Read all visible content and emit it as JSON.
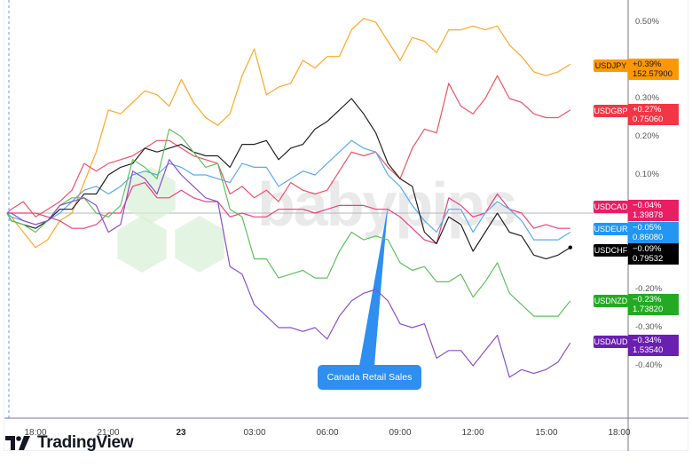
{
  "chart_data": {
    "type": "line",
    "title": "",
    "xlabel": "",
    "ylabel": "",
    "x_tick_labels": [
      "18:00",
      "21:00",
      "23",
      "03:00",
      "06:00",
      "09:00",
      "12:00",
      "15:00",
      "18:00"
    ],
    "y_tick_labels": [
      "0.50%",
      "0.30%",
      "0.20%",
      "0.10%",
      "-0.20%",
      "-0.30%",
      "-0.40%"
    ],
    "ylim": [
      -0.55,
      0.56
    ],
    "grid": false,
    "legend": "right (price-scale labels)",
    "x": [
      "17:00",
      "17:30",
      "18:00",
      "18:30",
      "19:00",
      "19:30",
      "20:00",
      "20:30",
      "21:00",
      "21:30",
      "22:00",
      "22:30",
      "23:00",
      "23:30",
      "00:00",
      "00:30",
      "01:00",
      "01:30",
      "02:00",
      "02:30",
      "03:00",
      "03:30",
      "04:00",
      "04:30",
      "05:00",
      "05:30",
      "06:00",
      "06:30",
      "07:00",
      "07:30",
      "08:00",
      "08:30",
      "09:00",
      "09:30",
      "10:00",
      "10:30",
      "11:00",
      "11:30",
      "12:00",
      "12:30",
      "13:00",
      "13:30",
      "14:00",
      "14:30",
      "15:00",
      "15:30",
      "16:00"
    ],
    "series": [
      {
        "name": "USDJPY",
        "change": "+0.39%",
        "price": "152.57900",
        "color": "#ff9800",
        "line_color": "#ffa726",
        "values": [
          -0.01,
          -0.05,
          -0.09,
          -0.07,
          -0.02,
          0.0,
          0.08,
          0.16,
          0.27,
          0.26,
          0.29,
          0.32,
          0.31,
          0.28,
          0.35,
          0.29,
          0.25,
          0.23,
          0.26,
          0.36,
          0.43,
          0.31,
          0.33,
          0.34,
          0.4,
          0.38,
          0.41,
          0.41,
          0.48,
          0.51,
          0.5,
          0.45,
          0.4,
          0.46,
          0.45,
          0.42,
          0.48,
          0.48,
          0.49,
          0.48,
          0.49,
          0.44,
          0.41,
          0.37,
          0.36,
          0.37,
          0.39
        ]
      },
      {
        "name": "USDGBP",
        "change": "+0.27%",
        "price": "0.75060",
        "color": "#f23645",
        "line_color": "#f05265",
        "values": [
          0.01,
          0.03,
          -0.01,
          0.01,
          0.03,
          0.06,
          0.13,
          0.11,
          0.13,
          0.14,
          0.15,
          0.17,
          0.19,
          0.19,
          0.17,
          0.15,
          0.14,
          0.13,
          0.05,
          0.07,
          0.04,
          0.06,
          0.03,
          0.08,
          0.06,
          0.05,
          0.06,
          0.11,
          0.16,
          0.15,
          0.16,
          0.12,
          0.09,
          0.17,
          0.22,
          0.21,
          0.34,
          0.28,
          0.26,
          0.3,
          0.36,
          0.3,
          0.29,
          0.26,
          0.25,
          0.25,
          0.27
        ]
      },
      {
        "name": "USDCAD",
        "change": "−0.04%",
        "price": "1.39878",
        "color": "#e91e63",
        "line_color": "#ec407a",
        "values": [
          0.0,
          0.0,
          0.0,
          -0.01,
          -0.02,
          -0.04,
          -0.04,
          -0.03,
          0.0,
          0.0,
          0.07,
          0.08,
          0.04,
          0.04,
          0.06,
          0.04,
          0.03,
          0.03,
          -0.01,
          0.0,
          -0.01,
          -0.01,
          0.01,
          0.01,
          0.01,
          0.0,
          0.01,
          0.02,
          0.02,
          0.02,
          0.01,
          0.01,
          -0.01,
          -0.04,
          -0.07,
          -0.08,
          0.04,
          0.02,
          -0.01,
          0.0,
          0.05,
          0.01,
          0.0,
          -0.04,
          -0.03,
          -0.04,
          -0.04
        ]
      },
      {
        "name": "USDEUR",
        "change": "−0.05%",
        "price": "0.86080",
        "color": "#2196f3",
        "line_color": "#5aa8f5",
        "values": [
          -0.01,
          -0.02,
          -0.03,
          -0.02,
          0.0,
          0.03,
          0.06,
          0.07,
          0.05,
          0.07,
          0.1,
          0.11,
          0.1,
          0.13,
          0.12,
          0.1,
          0.1,
          0.09,
          0.08,
          0.13,
          0.12,
          0.12,
          0.07,
          0.09,
          0.11,
          0.1,
          0.13,
          0.16,
          0.19,
          0.17,
          0.16,
          0.1,
          0.07,
          0.02,
          -0.02,
          -0.05,
          0.01,
          0.01,
          -0.05,
          0.0,
          0.03,
          0.01,
          -0.02,
          -0.07,
          -0.07,
          -0.07,
          -0.05
        ]
      },
      {
        "name": "USDCHF",
        "change": "−0.09%",
        "price": "0.79532",
        "color": "#000000",
        "line_color": "#222222",
        "values": [
          -0.02,
          -0.03,
          -0.04,
          -0.02,
          0.01,
          0.01,
          0.05,
          0.05,
          0.1,
          0.12,
          0.13,
          0.17,
          0.16,
          0.17,
          0.18,
          0.16,
          0.15,
          0.15,
          0.12,
          0.18,
          0.18,
          0.19,
          0.14,
          0.17,
          0.18,
          0.22,
          0.24,
          0.27,
          0.3,
          0.26,
          0.21,
          0.13,
          0.09,
          0.07,
          -0.05,
          -0.08,
          -0.01,
          -0.03,
          -0.1,
          -0.05,
          0.0,
          -0.05,
          -0.06,
          -0.11,
          -0.12,
          -0.11,
          -0.09
        ]
      },
      {
        "name": "USDNZD",
        "change": "−0.23%",
        "price": "1.73820",
        "color": "#22ab22",
        "line_color": "#5cc35c",
        "values": [
          -0.02,
          -0.03,
          -0.05,
          -0.02,
          0.02,
          0.04,
          0.04,
          0.0,
          -0.01,
          0.02,
          0.14,
          0.12,
          0.09,
          0.22,
          0.2,
          0.16,
          0.12,
          0.13,
          0.01,
          -0.01,
          -0.12,
          -0.12,
          -0.17,
          -0.16,
          -0.15,
          -0.17,
          -0.17,
          -0.1,
          -0.05,
          -0.07,
          -0.06,
          -0.07,
          -0.13,
          -0.15,
          -0.14,
          -0.18,
          -0.18,
          -0.16,
          -0.22,
          -0.18,
          -0.13,
          -0.21,
          -0.24,
          -0.27,
          -0.27,
          -0.27,
          -0.23
        ]
      },
      {
        "name": "USDAUD",
        "change": "−0.34%",
        "price": "1.53540",
        "color": "#6a1fb0",
        "line_color": "#8a4fd0",
        "values": [
          0.0,
          -0.02,
          -0.03,
          -0.02,
          0.02,
          0.03,
          0.04,
          0.02,
          -0.05,
          -0.03,
          0.11,
          0.09,
          0.05,
          0.14,
          0.1,
          0.07,
          0.04,
          0.03,
          -0.14,
          -0.16,
          -0.24,
          -0.27,
          -0.3,
          -0.3,
          -0.31,
          -0.3,
          -0.33,
          -0.27,
          -0.23,
          -0.21,
          -0.2,
          -0.23,
          -0.29,
          -0.3,
          -0.29,
          -0.38,
          -0.36,
          -0.36,
          -0.4,
          -0.36,
          -0.32,
          -0.43,
          -0.41,
          -0.42,
          -0.41,
          -0.39,
          -0.34
        ]
      }
    ],
    "annotations": [
      {
        "text": "Canada Retail Sales",
        "x": "08:30",
        "y": 0.02,
        "color": "#2f8ff0"
      }
    ]
  },
  "watermark": "babypips",
  "branding": {
    "name": "TradingView"
  }
}
